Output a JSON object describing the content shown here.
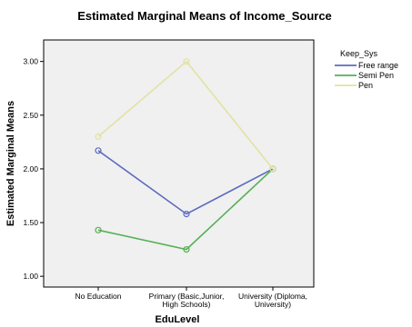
{
  "chart_data": {
    "type": "line",
    "title": "Estimated Marginal Means of Income_Source",
    "xlabel": "EduLevel",
    "ylabel": "Estimated Marginal Means",
    "ylim": [
      0.9,
      3.2
    ],
    "y_ticks": [
      "1.00",
      "1.50",
      "2.00",
      "2.50",
      "3.00"
    ],
    "y_tick_values": [
      1.0,
      1.5,
      2.0,
      2.5,
      3.0
    ],
    "categories": [
      [
        "No Education"
      ],
      [
        "Primary (Basic,Junior,",
        "High Schools)"
      ],
      [
        "University (Diploma,",
        "University)"
      ]
    ],
    "legend_title": "Keep_Sys",
    "legend_placement": "right",
    "grid": false,
    "plot_background": "#f0f0f0",
    "series": [
      {
        "name": "Free range",
        "color": "#5b6bbf",
        "values": [
          2.17,
          1.58,
          2.0
        ]
      },
      {
        "name": "Semi Pen",
        "color": "#55b055",
        "values": [
          1.43,
          1.25,
          2.0
        ]
      },
      {
        "name": "Pen",
        "color": "#e2e2a6",
        "values": [
          2.3,
          3.0,
          2.0
        ]
      }
    ]
  }
}
